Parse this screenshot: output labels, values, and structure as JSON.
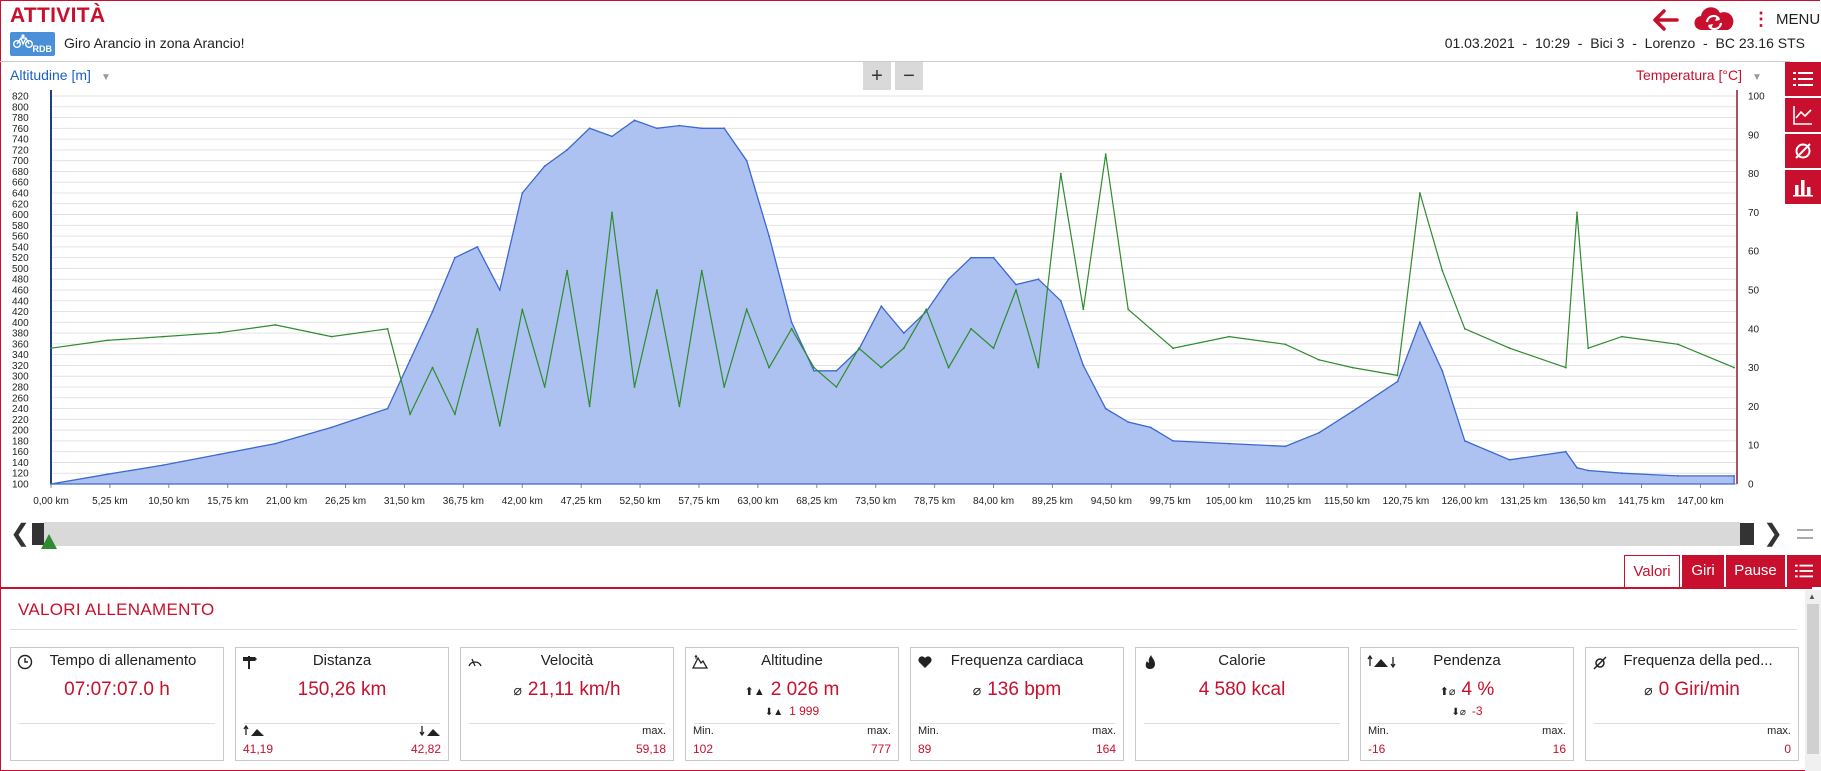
{
  "header": {
    "title": "ATTIVITÀ",
    "logo_text": "RDB",
    "subtitle": "Giro Arancio in zona Arancio!",
    "meta": "01.03.2021  -  10:29  -  Bici 3  -  Lorenzo  -  BC 23.16 STS",
    "menu_label": "MENU",
    "menu_icon": "vertical-dots-icon",
    "back_icon": "arrow-left-icon",
    "sync_icon": "cloud-sync-icon"
  },
  "chart_header": {
    "left_axis_title": "Altitudine [m]",
    "right_axis_title": "Temperatura [°C]",
    "zoom_in": "+",
    "zoom_out": "−"
  },
  "sidebar": {
    "items": [
      {
        "icon": "list-icon"
      },
      {
        "icon": "line-chart-icon"
      },
      {
        "icon": "average-icon"
      },
      {
        "icon": "bar-chart-icon"
      }
    ]
  },
  "colors": {
    "brand": "#c8102e",
    "altitude_fill": "#a9bff0",
    "altitude_line": "#3c68d0",
    "temperature_line": "#2e8b2e",
    "left_axis": "#1b5ec9"
  },
  "chart_data": {
    "type": "area",
    "x_unit": "km",
    "x": [
      0,
      5,
      10,
      15,
      20,
      25,
      30,
      32,
      34,
      36,
      38,
      40,
      42,
      44,
      46,
      48,
      50,
      52,
      54,
      56,
      58,
      60,
      62,
      64,
      66,
      68,
      70,
      72,
      74,
      76,
      78,
      80,
      82,
      84,
      86,
      88,
      90,
      92,
      94,
      96,
      98,
      100,
      105,
      110,
      113,
      116,
      120,
      122,
      124,
      126,
      130,
      135,
      136,
      137,
      140,
      145,
      150
    ],
    "series": [
      {
        "axis": "left",
        "values": [
          100,
          118,
          135,
          155,
          175,
          205,
          240,
          330,
          420,
          520,
          540,
          460,
          640,
          690,
          720,
          760,
          745,
          775,
          760,
          765,
          760,
          760,
          700,
          560,
          400,
          310,
          310,
          350,
          430,
          380,
          420,
          480,
          520,
          520,
          470,
          480,
          440,
          320,
          240,
          215,
          205,
          180,
          175,
          170,
          195,
          235,
          290,
          400,
          310,
          180,
          145,
          160,
          130,
          125,
          120,
          115,
          115
        ]
      },
      {
        "axis": "right",
        "values": [
          35,
          37,
          38,
          39,
          41,
          38,
          40,
          18,
          30,
          18,
          40,
          15,
          45,
          25,
          55,
          20,
          70,
          25,
          50,
          20,
          55,
          25,
          45,
          30,
          40,
          30,
          25,
          35,
          30,
          35,
          45,
          30,
          40,
          35,
          50,
          30,
          80,
          45,
          85,
          45,
          40,
          35,
          38,
          36,
          32,
          30,
          28,
          75,
          55,
          40,
          35,
          30,
          70,
          35,
          38,
          36,
          30
        ]
      }
    ],
    "x_ticks": [
      "0,00 km",
      "5,25 km",
      "10,50 km",
      "15,75 km",
      "21,00 km",
      "26,25 km",
      "31,50 km",
      "36,75 km",
      "42,00 km",
      "47,25 km",
      "52,50 km",
      "57,75 km",
      "63,00 km",
      "68,25 km",
      "73,50 km",
      "78,75 km",
      "84,00 km",
      "89,25 km",
      "94,50 km",
      "99,75 km",
      "105,00 km",
      "110,25 km",
      "115,50 km",
      "120,75 km",
      "126,00 km",
      "131,25 km",
      "136,50 km",
      "141,75 km",
      "147,00 km"
    ],
    "y_left_ticks": [
      "820",
      "800",
      "780",
      "760",
      "740",
      "720",
      "700",
      "680",
      "660",
      "640",
      "620",
      "600",
      "580",
      "560",
      "540",
      "520",
      "500",
      "480",
      "460",
      "440",
      "420",
      "400",
      "380",
      "360",
      "340",
      "320",
      "300",
      "280",
      "260",
      "240",
      "220",
      "200",
      "180",
      "160",
      "140",
      "120",
      "100"
    ],
    "y_right_ticks": [
      "100",
      "90",
      "80",
      "70",
      "60",
      "50",
      "40",
      "30",
      "20",
      "10",
      "0"
    ],
    "ylim_left": [
      100,
      820
    ],
    "ylim_right": [
      0,
      100
    ],
    "xlim": [
      0,
      150.26
    ],
    "grid": true
  },
  "scroller": {
    "left_icon": "chevron-left-icon",
    "right_icon": "chevron-right-icon",
    "marker_icon": "position-marker-icon"
  },
  "tabs": [
    {
      "label": "Valori",
      "active": true
    },
    {
      "label": "Giri",
      "active": false
    },
    {
      "label": "Pause",
      "active": false
    }
  ],
  "section_title": "VALORI ALLENAMENTO",
  "cards": [
    {
      "icon": "clock-icon",
      "title": "Tempo di allenamento",
      "main": "07:07:07.0 h"
    },
    {
      "icon": "signpost-icon",
      "title": "Distanza",
      "main": "150,26 km",
      "left_value": "41,19",
      "right_value": "42,82",
      "left_icon": "uphill-icon",
      "right_icon": "downhill-icon"
    },
    {
      "icon": "speedometer-icon",
      "title": "Velocità",
      "avg_symbol": "⌀",
      "main": "21,11 km/h",
      "right_label": "max.",
      "right_value": "59,18"
    },
    {
      "icon": "mountain-icon",
      "title": "Altitudine",
      "main": "2 026 m",
      "main_icon": "ascent-icon",
      "sub": "1 999",
      "sub_icon": "descent-icon",
      "left_label": "Min.",
      "left_value": "102",
      "right_label": "max.",
      "right_value": "777"
    },
    {
      "icon": "heart-icon",
      "title": "Frequenza cardiaca",
      "avg_symbol": "⌀",
      "main": "136 bpm",
      "left_label": "Min.",
      "left_value": "89",
      "right_label": "max.",
      "right_value": "164"
    },
    {
      "icon": "flame-icon",
      "title": "Calorie",
      "main": "4 580 kcal"
    },
    {
      "icon": "slope-icon",
      "title": "Pendenza",
      "main": "4 %",
      "main_icon": "avg-up-icon",
      "main_prefix": "⬆⌀",
      "sub": "-3",
      "sub_prefix": "⬇⌀",
      "left_label": "Min.",
      "left_value": "-16",
      "right_label": "max.",
      "right_value": "16"
    },
    {
      "icon": "cadence-icon",
      "title": "Frequenza della ped...",
      "avg_symbol": "⌀",
      "main": "0 Giri/min",
      "right_label": "max.",
      "right_value": "0"
    }
  ]
}
